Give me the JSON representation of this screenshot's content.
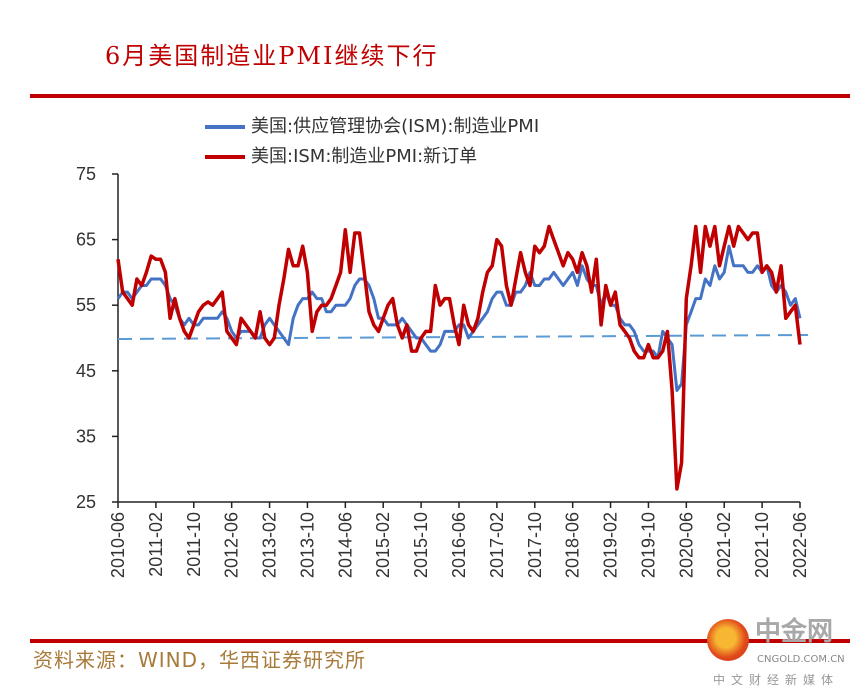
{
  "title": "6月美国制造业PMI继续下行",
  "source": "资料来源：WIND，华西证券研究所",
  "watermark": {
    "name": "中金网",
    "url": "CNGOLD.COM.CN",
    "tagline": "中文财经新媒体"
  },
  "chart_data": {
    "type": "line",
    "title": "6月美国制造业PMI继续下行",
    "xlabel": "",
    "ylabel": "",
    "ylim": [
      25,
      75
    ],
    "yticks": [
      25,
      35,
      45,
      55,
      65,
      75
    ],
    "x_start": "2010-06",
    "x_end": "2022-06",
    "xtick_labels": [
      "2010-06",
      "2011-02",
      "2011-10",
      "2012-06",
      "2013-02",
      "2013-10",
      "2014-06",
      "2015-02",
      "2015-10",
      "2016-06",
      "2017-02",
      "2017-10",
      "2018-06",
      "2019-02",
      "2019-10",
      "2020-06",
      "2021-02",
      "2021-10",
      "2022-06"
    ],
    "grid": false,
    "legend_position": "top",
    "reference_line": {
      "value": 50,
      "color": "#5b9bd5",
      "style": "dashed"
    },
    "series": [
      {
        "name": "美国:供应管理协会(ISM):制造业PMI",
        "color": "#4472c4",
        "values": [
          56,
          57,
          57,
          56,
          57,
          58,
          58,
          59,
          59,
          59,
          58,
          56,
          55,
          53,
          52,
          53,
          52,
          52,
          53,
          53,
          53,
          53,
          54,
          53,
          51,
          50,
          51,
          51,
          51,
          50,
          50,
          52,
          53,
          52,
          51,
          50,
          49,
          53,
          55,
          56,
          56,
          57,
          56,
          56,
          54,
          54,
          55,
          55,
          55,
          56,
          58,
          59,
          59,
          58,
          56,
          53,
          53,
          52,
          52,
          52,
          53,
          52,
          51,
          50,
          50,
          49,
          48,
          48,
          49,
          51,
          51,
          51,
          52,
          52,
          50,
          51,
          52,
          53,
          54,
          56,
          57,
          57,
          55,
          55,
          57,
          57,
          58,
          60,
          58,
          58,
          59,
          59,
          60,
          59,
          58,
          59,
          60,
          58,
          61,
          59,
          58,
          58,
          55,
          57,
          55,
          55,
          53,
          52,
          52,
          51,
          49,
          48,
          48,
          48,
          47,
          51,
          50,
          49,
          42,
          43,
          52,
          54,
          56,
          56,
          59,
          58,
          61,
          59,
          60,
          64,
          61,
          61,
          61,
          60,
          60,
          61,
          60,
          61,
          58,
          57,
          58,
          57,
          55,
          56,
          53
        ]
      },
      {
        "name": "美国:ISM:制造业PMI:新订单",
        "color": "#c00000",
        "values": [
          62,
          57,
          56,
          55,
          59,
          58,
          60,
          62.5,
          62,
          62,
          60,
          53,
          56,
          53,
          51,
          50,
          52,
          54,
          55,
          55.5,
          55,
          56,
          57,
          51,
          50,
          49,
          53,
          52,
          51,
          50,
          54,
          50,
          49,
          50,
          55,
          59,
          63.5,
          61,
          61,
          64,
          60,
          51,
          54,
          55,
          55,
          56,
          58,
          60,
          66.5,
          60,
          66,
          66,
          60,
          54,
          52,
          51,
          53,
          55,
          56,
          52,
          50,
          52,
          48,
          48,
          50,
          51,
          51,
          58,
          55,
          56,
          56,
          52,
          49,
          55,
          52,
          51,
          53,
          57,
          60,
          61,
          65,
          64,
          58,
          55,
          59,
          63,
          60,
          58,
          64,
          63,
          64,
          67,
          65,
          63,
          61,
          63,
          62,
          60,
          63,
          61,
          57,
          62,
          52,
          58,
          55,
          57,
          52,
          51,
          50,
          48,
          47,
          47,
          49,
          47,
          47,
          48,
          51,
          42,
          27,
          31,
          56,
          61,
          67,
          60,
          67,
          64,
          67,
          61,
          64,
          67,
          64,
          67,
          66,
          65,
          66,
          66,
          60,
          61,
          60,
          57,
          61,
          53,
          54,
          55,
          49
        ]
      }
    ]
  }
}
